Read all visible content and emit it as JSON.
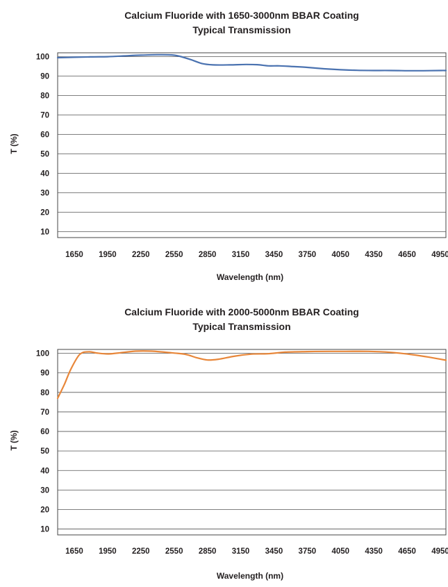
{
  "chart_data": [
    {
      "type": "line",
      "title": "Calcium Fluoride with 1650-3000nm BBAR Coating",
      "subtitle": "Typical Transmission",
      "xlabel": "Wavelength (nm)",
      "ylabel": "T (%)",
      "xlim": [
        1500,
        5000
      ],
      "ylim": [
        7,
        102
      ],
      "xticks": [
        1650,
        1950,
        2250,
        2550,
        2850,
        3150,
        3450,
        3750,
        4050,
        4350,
        4650,
        4950
      ],
      "yticks": [
        10,
        20,
        30,
        40,
        50,
        60,
        70,
        80,
        90,
        100
      ],
      "grid": true,
      "series": [
        {
          "color": "#4a72b0",
          "x": [
            1500,
            1650,
            1800,
            1950,
            2100,
            2250,
            2400,
            2530,
            2600,
            2700,
            2800,
            2900,
            3050,
            3200,
            3300,
            3400,
            3500,
            3600,
            3750,
            3900,
            4050,
            4200,
            4350,
            4500,
            4650,
            4800,
            4950,
            5000
          ],
          "y": [
            99.5,
            99.7,
            99.9,
            100.0,
            100.4,
            100.8,
            101.0,
            100.9,
            100.2,
            98.5,
            96.5,
            95.8,
            95.8,
            96.0,
            95.9,
            95.3,
            95.3,
            95.0,
            94.5,
            93.8,
            93.3,
            93.0,
            92.9,
            92.9,
            92.8,
            92.8,
            92.9,
            92.9
          ]
        }
      ]
    },
    {
      "type": "line",
      "title": "Calcium Fluoride with 2000-5000nm BBAR Coating",
      "subtitle": "Typical Transmission",
      "xlabel": "Wavelength (nm)",
      "ylabel": "T (%)",
      "xlim": [
        1500,
        5000
      ],
      "ylim": [
        7,
        102
      ],
      "xticks": [
        1650,
        1950,
        2250,
        2550,
        2850,
        3150,
        3450,
        3750,
        4050,
        4350,
        4650,
        4950
      ],
      "yticks": [
        10,
        20,
        30,
        40,
        50,
        60,
        70,
        80,
        90,
        100
      ],
      "grid": true,
      "series": [
        {
          "color": "#e8873a",
          "x": [
            1500,
            1560,
            1620,
            1700,
            1780,
            1850,
            1950,
            2050,
            2200,
            2350,
            2500,
            2650,
            2750,
            2850,
            2950,
            3100,
            3250,
            3400,
            3550,
            3750,
            3950,
            4100,
            4300,
            4500,
            4700,
            4850,
            5000
          ],
          "y": [
            77.0,
            84.0,
            92.0,
            99.5,
            100.8,
            100.2,
            99.7,
            100.2,
            101.1,
            101.1,
            100.4,
            99.5,
            97.8,
            96.6,
            97.0,
            98.6,
            99.6,
            99.8,
            100.6,
            100.9,
            101.0,
            101.0,
            101.0,
            100.5,
            99.3,
            98.0,
            96.5
          ]
        }
      ]
    }
  ]
}
